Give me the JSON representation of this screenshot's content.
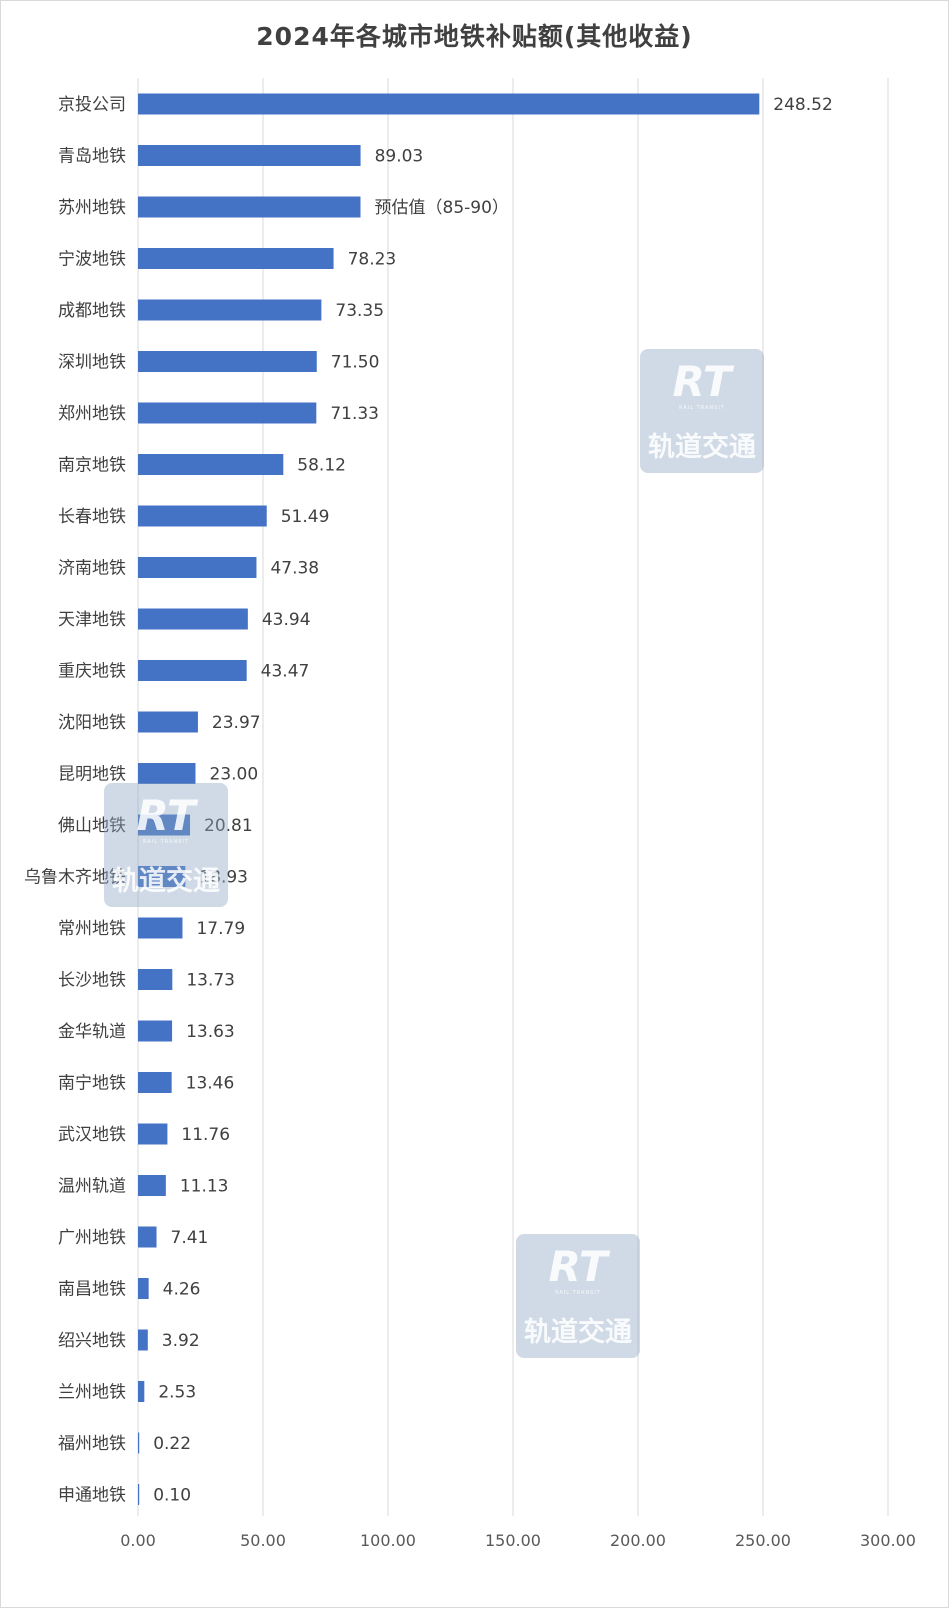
{
  "chart_data": {
    "type": "bar",
    "orientation": "horizontal",
    "title": "2024年各城市地铁补贴额(其他收益)",
    "xlim": [
      0,
      300
    ],
    "x_ticks": [
      "0.00",
      "50.00",
      "100.00",
      "150.00",
      "200.00",
      "250.00",
      "300.00"
    ],
    "grid": "vertical",
    "bar_color": "#4472c4",
    "categories": [
      "京投公司",
      "青岛地铁",
      "苏州地铁",
      "宁波地铁",
      "成都地铁",
      "深圳地铁",
      "郑州地铁",
      "南京地铁",
      "长春地铁",
      "济南地铁",
      "天津地铁",
      "重庆地铁",
      "沈阳地铁",
      "昆明地铁",
      "佛山地铁",
      "乌鲁木齐地铁",
      "常州地铁",
      "长沙地铁",
      "金华轨道",
      "南宁地铁",
      "武汉地铁",
      "温州轨道",
      "广州地铁",
      "南昌地铁",
      "绍兴地铁",
      "兰州地铁",
      "福州地铁",
      "申通地铁"
    ],
    "values": [
      248.52,
      89.03,
      89,
      78.23,
      73.35,
      71.5,
      71.33,
      58.12,
      51.49,
      47.38,
      43.94,
      43.47,
      23.97,
      23.0,
      20.81,
      18.93,
      17.79,
      13.73,
      13.63,
      13.46,
      11.76,
      11.13,
      7.41,
      4.26,
      3.92,
      2.53,
      0.22,
      0.1
    ],
    "value_labels": [
      "248.52",
      "89.03",
      "预估值（85-90）",
      "78.23",
      "73.35",
      "71.50",
      "71.33",
      "58.12",
      "51.49",
      "47.38",
      "43.94",
      "43.47",
      "23.97",
      "23.00",
      "20.81",
      "18.93",
      "17.79",
      "13.73",
      "13.63",
      "13.46",
      "11.76",
      "11.13",
      "7.41",
      "4.26",
      "3.92",
      "2.53",
      "0.22",
      "0.10"
    ]
  },
  "watermark": {
    "logo_text": "RT",
    "sub_text": "RAIL TRANSIT",
    "name": "轨道交通"
  }
}
